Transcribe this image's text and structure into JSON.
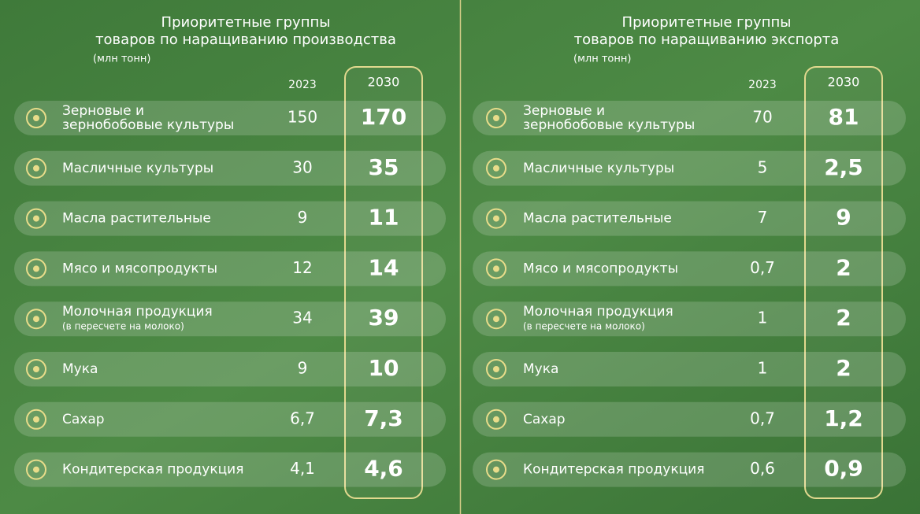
{
  "panels": [
    {
      "title_lines": [
        "Приоритетные группы",
        "товаров по наращиванию производства"
      ],
      "unit": "(млн тонн)",
      "columns": [
        "2023",
        "2030"
      ],
      "rows": [
        {
          "label_lines": [
            "Зерновые и",
            "зернобобовые культуры"
          ],
          "values": [
            "150",
            "170"
          ]
        },
        {
          "label_lines": [
            "Масличные культуры"
          ],
          "values": [
            "30",
            "35"
          ]
        },
        {
          "label_lines": [
            "Масла растительные"
          ],
          "values": [
            "9",
            "11"
          ]
        },
        {
          "label_lines": [
            "Мясо и мясопродукты"
          ],
          "values": [
            "12",
            "14"
          ]
        },
        {
          "label_lines": [
            "Молочная продукция"
          ],
          "note": "(в пересчете на молоко)",
          "values": [
            "34",
            "39"
          ]
        },
        {
          "label_lines": [
            "Мука"
          ],
          "values": [
            "9",
            "10"
          ]
        },
        {
          "label_lines": [
            "Сахар"
          ],
          "values": [
            "6,7",
            "7,3"
          ]
        },
        {
          "label_lines": [
            "Кондитерская продукция"
          ],
          "values": [
            "4,1",
            "4,6"
          ]
        }
      ]
    },
    {
      "title_lines": [
        "Приоритетные группы",
        "товаров по наращиванию экспорта"
      ],
      "unit": "(млн тонн)",
      "columns": [
        "2023",
        "2030"
      ],
      "rows": [
        {
          "label_lines": [
            "Зерновые и",
            "зернобобовые культуры"
          ],
          "values": [
            "70",
            "81"
          ]
        },
        {
          "label_lines": [
            "Масличные культуры"
          ],
          "values": [
            "5",
            "2,5"
          ]
        },
        {
          "label_lines": [
            "Масла растительные"
          ],
          "values": [
            "7",
            "9"
          ]
        },
        {
          "label_lines": [
            "Мясо и мясопродукты"
          ],
          "values": [
            "0,7",
            "2"
          ]
        },
        {
          "label_lines": [
            "Молочная продукция"
          ],
          "note": "(в пересчете на молоко)",
          "values": [
            "1",
            "2"
          ]
        },
        {
          "label_lines": [
            "Мука"
          ],
          "values": [
            "1",
            "2"
          ]
        },
        {
          "label_lines": [
            "Сахар"
          ],
          "values": [
            "0,7",
            "1,2"
          ]
        },
        {
          "label_lines": [
            "Кондитерская продукция"
          ],
          "values": [
            "0,6",
            "0,9"
          ]
        }
      ]
    }
  ]
}
